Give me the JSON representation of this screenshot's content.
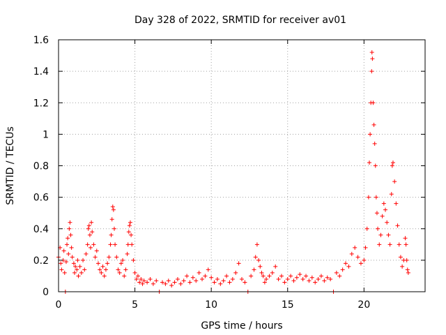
{
  "chart_data": {
    "type": "scatter",
    "title": "Day 328 of 2022, SRMTID for receiver av01",
    "xlabel": "GPS time / hours",
    "ylabel": "SRMTID / TECUs",
    "xlim": [
      0,
      24
    ],
    "ylim": [
      0,
      1.6
    ],
    "xticks": [
      0,
      5,
      10,
      15,
      20
    ],
    "xtick_labels": [
      "0",
      "5",
      "10",
      "15",
      "20"
    ],
    "yticks": [
      0,
      0.2,
      0.4,
      0.6,
      0.8,
      1.0,
      1.2,
      1.4,
      1.6
    ],
    "ytick_labels": [
      "0",
      "0.2",
      "0.4",
      "0.6",
      "0.8",
      "1",
      "1.2",
      "1.4",
      "1.6"
    ],
    "grid": true,
    "marker": "+",
    "color": "#ff0000",
    "series": [
      {
        "name": "SRMTID",
        "points": [
          [
            0.0,
            0.22
          ],
          [
            0.1,
            0.28
          ],
          [
            0.15,
            0.18
          ],
          [
            0.2,
            0.14
          ],
          [
            0.3,
            0.2
          ],
          [
            0.35,
            0.26
          ],
          [
            0.4,
            0.12
          ],
          [
            0.45,
            0.0
          ],
          [
            0.5,
            0.19
          ],
          [
            0.55,
            0.3
          ],
          [
            0.6,
            0.34
          ],
          [
            0.65,
            0.24
          ],
          [
            0.7,
            0.4
          ],
          [
            0.75,
            0.44
          ],
          [
            0.8,
            0.36
          ],
          [
            0.85,
            0.28
          ],
          [
            0.9,
            0.22
          ],
          [
            1.0,
            0.18
          ],
          [
            1.05,
            0.12
          ],
          [
            1.1,
            0.16
          ],
          [
            1.2,
            0.14
          ],
          [
            1.25,
            0.2
          ],
          [
            1.3,
            0.1
          ],
          [
            1.4,
            0.16
          ],
          [
            1.5,
            0.12
          ],
          [
            1.6,
            0.2
          ],
          [
            1.7,
            0.14
          ],
          [
            1.8,
            0.24
          ],
          [
            1.9,
            0.3
          ],
          [
            1.95,
            0.4
          ],
          [
            2.0,
            0.42
          ],
          [
            2.05,
            0.36
          ],
          [
            2.1,
            0.28
          ],
          [
            2.15,
            0.44
          ],
          [
            2.2,
            0.38
          ],
          [
            2.3,
            0.3
          ],
          [
            2.4,
            0.22
          ],
          [
            2.5,
            0.26
          ],
          [
            2.6,
            0.18
          ],
          [
            2.7,
            0.14
          ],
          [
            2.8,
            0.12
          ],
          [
            2.9,
            0.16
          ],
          [
            3.0,
            0.1
          ],
          [
            3.1,
            0.14
          ],
          [
            3.2,
            0.18
          ],
          [
            3.3,
            0.22
          ],
          [
            3.4,
            0.3
          ],
          [
            3.45,
            0.36
          ],
          [
            3.5,
            0.46
          ],
          [
            3.55,
            0.54
          ],
          [
            3.6,
            0.52
          ],
          [
            3.65,
            0.4
          ],
          [
            3.7,
            0.3
          ],
          [
            3.8,
            0.22
          ],
          [
            3.9,
            0.14
          ],
          [
            4.0,
            0.12
          ],
          [
            4.1,
            0.18
          ],
          [
            4.2,
            0.2
          ],
          [
            4.3,
            0.1
          ],
          [
            4.4,
            0.14
          ],
          [
            4.5,
            0.24
          ],
          [
            4.55,
            0.3
          ],
          [
            4.6,
            0.38
          ],
          [
            4.65,
            0.42
          ],
          [
            4.7,
            0.44
          ],
          [
            4.75,
            0.36
          ],
          [
            4.8,
            0.3
          ],
          [
            4.9,
            0.2
          ],
          [
            5.0,
            0.12
          ],
          [
            5.1,
            0.08
          ],
          [
            5.2,
            0.1
          ],
          [
            5.3,
            0.06
          ],
          [
            5.4,
            0.08
          ],
          [
            5.5,
            0.05
          ],
          [
            5.6,
            0.07
          ],
          [
            5.8,
            0.06
          ],
          [
            6.0,
            0.08
          ],
          [
            6.2,
            0.05
          ],
          [
            6.4,
            0.07
          ],
          [
            6.6,
            0.0
          ],
          [
            6.8,
            0.06
          ],
          [
            7.0,
            0.05
          ],
          [
            7.2,
            0.07
          ],
          [
            7.4,
            0.04
          ],
          [
            7.6,
            0.06
          ],
          [
            7.8,
            0.08
          ],
          [
            8.0,
            0.05
          ],
          [
            8.2,
            0.07
          ],
          [
            8.4,
            0.1
          ],
          [
            8.6,
            0.06
          ],
          [
            8.8,
            0.09
          ],
          [
            9.0,
            0.07
          ],
          [
            9.2,
            0.12
          ],
          [
            9.4,
            0.08
          ],
          [
            9.6,
            0.1
          ],
          [
            9.8,
            0.14
          ],
          [
            10.0,
            0.09
          ],
          [
            10.2,
            0.06
          ],
          [
            10.4,
            0.08
          ],
          [
            10.6,
            0.05
          ],
          [
            10.8,
            0.07
          ],
          [
            11.0,
            0.1
          ],
          [
            11.2,
            0.06
          ],
          [
            11.4,
            0.08
          ],
          [
            11.6,
            0.12
          ],
          [
            11.8,
            0.18
          ],
          [
            12.0,
            0.08
          ],
          [
            12.2,
            0.06
          ],
          [
            12.4,
            0.0
          ],
          [
            12.6,
            0.1
          ],
          [
            12.8,
            0.14
          ],
          [
            12.9,
            0.22
          ],
          [
            13.0,
            0.3
          ],
          [
            13.1,
            0.2
          ],
          [
            13.2,
            0.16
          ],
          [
            13.3,
            0.12
          ],
          [
            13.4,
            0.1
          ],
          [
            13.5,
            0.06
          ],
          [
            13.6,
            0.08
          ],
          [
            13.8,
            0.1
          ],
          [
            14.0,
            0.12
          ],
          [
            14.2,
            0.16
          ],
          [
            14.4,
            0.08
          ],
          [
            14.6,
            0.1
          ],
          [
            14.8,
            0.06
          ],
          [
            15.0,
            0.08
          ],
          [
            15.2,
            0.1
          ],
          [
            15.4,
            0.07
          ],
          [
            15.6,
            0.09
          ],
          [
            15.8,
            0.11
          ],
          [
            16.0,
            0.08
          ],
          [
            16.2,
            0.1
          ],
          [
            16.4,
            0.07
          ],
          [
            16.6,
            0.09
          ],
          [
            16.8,
            0.06
          ],
          [
            17.0,
            0.08
          ],
          [
            17.2,
            0.1
          ],
          [
            17.4,
            0.07
          ],
          [
            17.6,
            0.09
          ],
          [
            17.8,
            0.08
          ],
          [
            18.0,
            0.0
          ],
          [
            18.2,
            0.12
          ],
          [
            18.4,
            0.1
          ],
          [
            18.6,
            0.14
          ],
          [
            18.8,
            0.18
          ],
          [
            19.0,
            0.16
          ],
          [
            19.2,
            0.24
          ],
          [
            19.4,
            0.28
          ],
          [
            19.6,
            0.22
          ],
          [
            19.8,
            0.18
          ],
          [
            20.0,
            0.2
          ],
          [
            20.1,
            0.28
          ],
          [
            20.2,
            0.4
          ],
          [
            20.3,
            0.6
          ],
          [
            20.35,
            0.82
          ],
          [
            20.4,
            1.0
          ],
          [
            20.45,
            1.2
          ],
          [
            20.5,
            1.4
          ],
          [
            20.52,
            1.52
          ],
          [
            20.55,
            1.48
          ],
          [
            20.6,
            1.2
          ],
          [
            20.65,
            1.06
          ],
          [
            20.7,
            0.94
          ],
          [
            20.75,
            0.8
          ],
          [
            20.8,
            0.6
          ],
          [
            20.85,
            0.5
          ],
          [
            20.9,
            0.4
          ],
          [
            21.0,
            0.3
          ],
          [
            21.1,
            0.36
          ],
          [
            21.2,
            0.48
          ],
          [
            21.3,
            0.56
          ],
          [
            21.4,
            0.52
          ],
          [
            21.5,
            0.44
          ],
          [
            21.6,
            0.36
          ],
          [
            21.7,
            0.3
          ],
          [
            21.8,
            0.62
          ],
          [
            21.85,
            0.8
          ],
          [
            21.9,
            0.82
          ],
          [
            22.0,
            0.7
          ],
          [
            22.1,
            0.56
          ],
          [
            22.2,
            0.42
          ],
          [
            22.3,
            0.3
          ],
          [
            22.4,
            0.22
          ],
          [
            22.5,
            0.16
          ],
          [
            22.6,
            0.2
          ],
          [
            22.7,
            0.34
          ],
          [
            22.75,
            0.3
          ],
          [
            22.8,
            0.2
          ],
          [
            22.85,
            0.14
          ],
          [
            22.9,
            0.12
          ]
        ]
      }
    ]
  }
}
